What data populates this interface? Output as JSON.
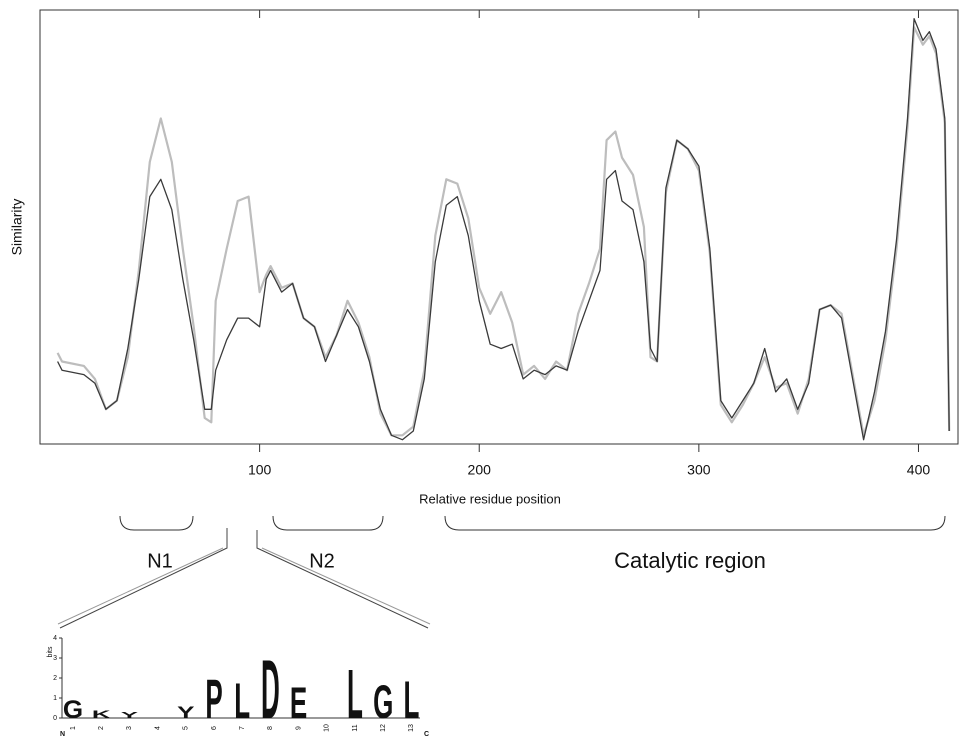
{
  "chart_data": {
    "type": "line",
    "ylabel": "Similarity",
    "xlabel": "Relative residue position",
    "x": [
      8,
      10,
      20,
      25,
      30,
      35,
      40,
      45,
      50,
      55,
      60,
      65,
      70,
      75,
      78,
      80,
      85,
      90,
      95,
      100,
      103,
      105,
      110,
      115,
      120,
      125,
      130,
      135,
      140,
      145,
      150,
      155,
      160,
      165,
      170,
      175,
      180,
      185,
      190,
      195,
      200,
      205,
      210,
      215,
      220,
      225,
      230,
      235,
      240,
      245,
      250,
      255,
      258,
      262,
      265,
      270,
      275,
      278,
      281,
      285,
      290,
      295,
      300,
      305,
      310,
      315,
      320,
      325,
      330,
      335,
      340,
      345,
      350,
      355,
      360,
      365,
      370,
      375,
      380,
      385,
      390,
      395,
      398,
      402,
      405,
      408,
      412,
      414
    ],
    "series": [
      {
        "color": "#bdbdbd",
        "values": [
          0.21,
          0.19,
          0.18,
          0.15,
          0.08,
          0.1,
          0.2,
          0.4,
          0.65,
          0.75,
          0.65,
          0.45,
          0.27,
          0.06,
          0.05,
          0.33,
          0.45,
          0.56,
          0.57,
          0.35,
          0.39,
          0.41,
          0.36,
          0.37,
          0.29,
          0.27,
          0.2,
          0.25,
          0.33,
          0.28,
          0.2,
          0.07,
          0.02,
          0.02,
          0.04,
          0.17,
          0.48,
          0.61,
          0.6,
          0.52,
          0.36,
          0.3,
          0.35,
          0.28,
          0.16,
          0.18,
          0.15,
          0.19,
          0.17,
          0.3,
          0.37,
          0.45,
          0.7,
          0.72,
          0.66,
          0.62,
          0.5,
          0.2,
          0.19,
          0.58,
          0.7,
          0.68,
          0.63,
          0.44,
          0.09,
          0.05,
          0.09,
          0.14,
          0.2,
          0.13,
          0.14,
          0.07,
          0.15,
          0.31,
          0.32,
          0.3,
          0.16,
          0.02,
          0.1,
          0.24,
          0.45,
          0.73,
          0.96,
          0.92,
          0.94,
          0.9,
          0.74,
          0.03
        ]
      },
      {
        "color": "#3a3a3a",
        "values": [
          0.19,
          0.17,
          0.16,
          0.14,
          0.08,
          0.1,
          0.22,
          0.38,
          0.57,
          0.61,
          0.54,
          0.38,
          0.24,
          0.08,
          0.08,
          0.17,
          0.24,
          0.29,
          0.29,
          0.27,
          0.38,
          0.4,
          0.35,
          0.37,
          0.29,
          0.27,
          0.19,
          0.25,
          0.31,
          0.27,
          0.19,
          0.08,
          0.02,
          0.01,
          0.03,
          0.15,
          0.42,
          0.55,
          0.57,
          0.48,
          0.33,
          0.23,
          0.22,
          0.23,
          0.15,
          0.17,
          0.16,
          0.18,
          0.17,
          0.26,
          0.33,
          0.4,
          0.61,
          0.63,
          0.56,
          0.54,
          0.42,
          0.22,
          0.19,
          0.59,
          0.7,
          0.68,
          0.64,
          0.45,
          0.1,
          0.06,
          0.1,
          0.14,
          0.22,
          0.12,
          0.15,
          0.08,
          0.14,
          0.31,
          0.32,
          0.29,
          0.15,
          0.01,
          0.12,
          0.26,
          0.47,
          0.75,
          0.98,
          0.93,
          0.95,
          0.91,
          0.75,
          0.03
        ]
      }
    ],
    "xlim": [
      0,
      418
    ],
    "ylim": [
      0,
      1
    ],
    "xticks": [
      100,
      200,
      300,
      400
    ],
    "annotations": [
      "N1",
      "N2",
      "Catalytic region"
    ],
    "logo": {
      "ylabel": "bits",
      "yticks": [
        0,
        1,
        2,
        3,
        4
      ],
      "ylim": [
        0,
        4
      ],
      "positions": [
        1,
        2,
        3,
        4,
        5,
        6,
        7,
        8,
        9,
        10,
        11,
        12,
        13
      ],
      "start": "N",
      "end": "C",
      "letters": [
        "G",
        "K",
        "Y",
        "Y",
        "P",
        "L",
        "D",
        "E",
        "L",
        "G",
        "L"
      ],
      "letter_positions": [
        1,
        2,
        3,
        5,
        6,
        7,
        8,
        9,
        11,
        12,
        13
      ],
      "letter_bits": [
        0.9,
        0.4,
        0.3,
        0.6,
        2.0,
        1.8,
        3.0,
        1.6,
        2.5,
        1.7,
        1.9
      ],
      "letter_colors": [
        "#2ca02c",
        "#3050d0",
        "#2ca02c",
        "#2ca02c",
        "#111111",
        "#111111",
        "#e02020",
        "#e02020",
        "#111111",
        "#2ca02c",
        "#111111"
      ]
    }
  }
}
